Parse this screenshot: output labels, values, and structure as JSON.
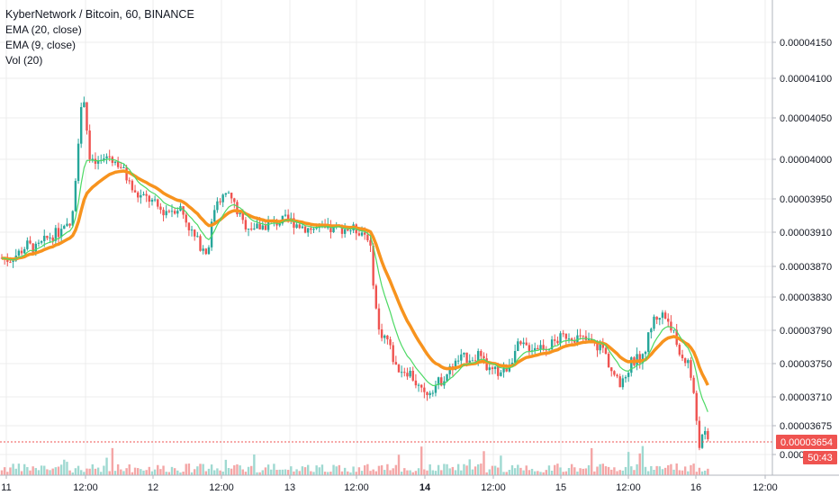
{
  "legend": {
    "title": "KyberNetwork / Bitcoin, 60, BINANCE",
    "ema20": "EMA (20, close)",
    "ema9": "EMA (9, close)",
    "vol": "Vol (20)"
  },
  "price_badge": {
    "value": "0.00003654",
    "countdown": "50:43"
  },
  "colors": {
    "up": "#26a69a",
    "down": "#ef5350",
    "ema20": "#f7931e",
    "ema9": "#4cd964",
    "vol_up": "#9fd9d1",
    "vol_down": "#f4a6a6",
    "badge": "#ef5350",
    "grid": "#ececec"
  },
  "chart_data": {
    "type": "candlestick",
    "y_ticks": [
      "0.00004150",
      "0.00004100",
      "0.00004050",
      "0.00004000",
      "0.00003950",
      "0.00003910",
      "0.00003870",
      "0.00003830",
      "0.00003790",
      "0.00003750",
      "0.00003710",
      "0.00003675",
      "0.000"
    ],
    "x_ticks": [
      {
        "label": "11",
        "bold": false
      },
      {
        "label": "12:00",
        "bold": false
      },
      {
        "label": "12",
        "bold": false
      },
      {
        "label": "12:00",
        "bold": false
      },
      {
        "label": "13",
        "bold": false
      },
      {
        "label": "12:00",
        "bold": false
      },
      {
        "label": "14",
        "bold": true
      },
      {
        "label": "12:00",
        "bold": false
      },
      {
        "label": "15",
        "bold": false
      },
      {
        "label": "12:00",
        "bold": false
      },
      {
        "label": "16",
        "bold": false
      },
      {
        "label": "12:00",
        "bold": false
      }
    ],
    "last_price": 3.654e-05
  }
}
